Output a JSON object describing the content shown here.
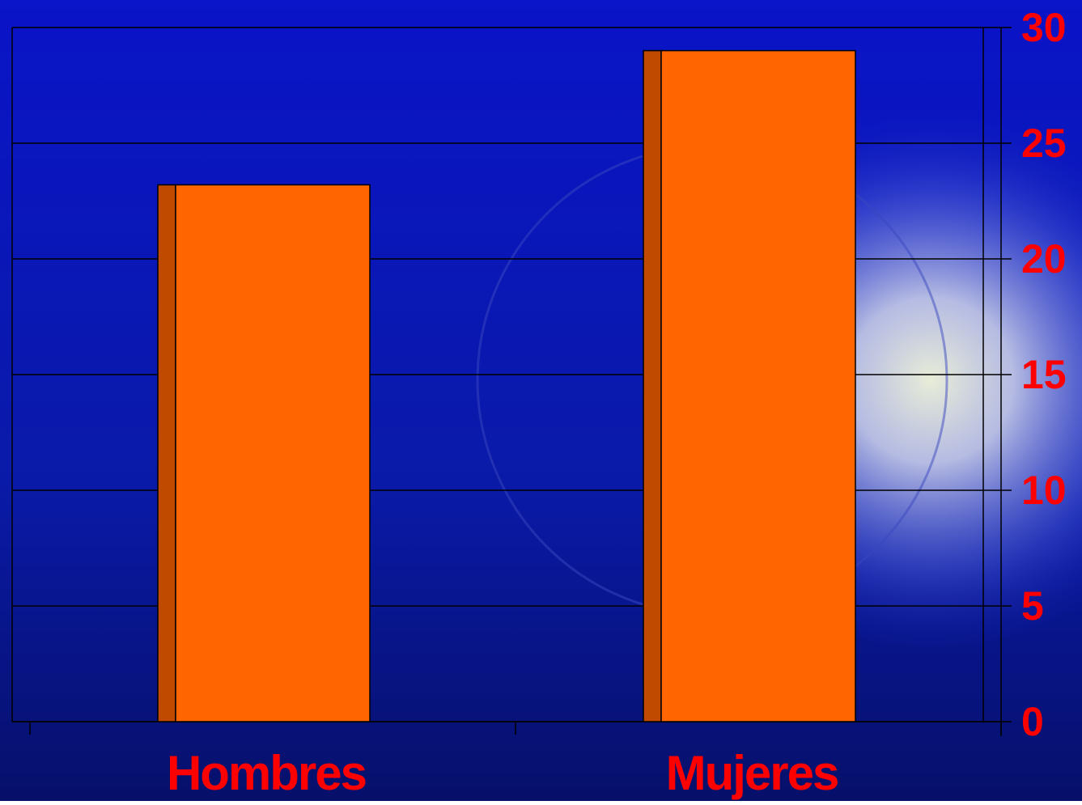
{
  "chart_data": {
    "type": "bar",
    "categories": [
      "Hombres",
      "Mujeres"
    ],
    "values": [
      23.2,
      29
    ],
    "color": "#ff6600",
    "ylim": [
      0,
      30
    ],
    "yticks": [
      0,
      5,
      10,
      15,
      20,
      25,
      30
    ],
    "grid": true
  }
}
